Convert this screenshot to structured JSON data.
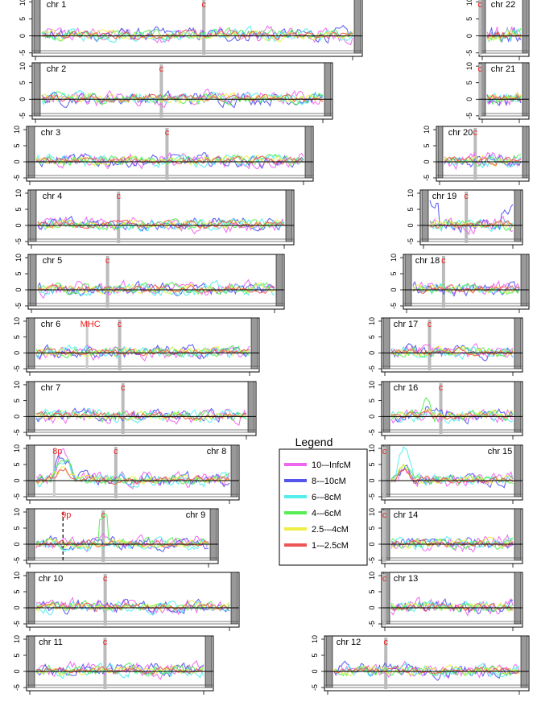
{
  "chart_data": {
    "type": "line",
    "ytick_labels": [
      "10",
      "5",
      "0",
      "-5"
    ],
    "y_ticks": [
      10,
      5,
      0,
      -5
    ],
    "ylim": [
      -6,
      11
    ],
    "centromere_label": "c",
    "grid": false,
    "chromosome_panels": [
      {
        "label": "chr 1",
        "label_side": "left",
        "centromere_frac": 0.52
      },
      {
        "label": "chr 2",
        "label_side": "left",
        "centromere_frac": 0.43
      },
      {
        "label": "chr 3",
        "label_side": "left",
        "centromere_frac": 0.49
      },
      {
        "label": "chr 4",
        "label_side": "left",
        "centromere_frac": 0.34
      },
      {
        "label": "chr 5",
        "label_side": "left",
        "centromere_frac": 0.31
      },
      {
        "label": "chr 6",
        "label_side": "left",
        "centromere_frac": 0.4,
        "extra_marker": {
          "label": "MHC",
          "frac": 0.26
        }
      },
      {
        "label": "chr 7",
        "label_side": "left",
        "centromere_frac": 0.42
      },
      {
        "label": "chr 8",
        "label_side": "right",
        "centromere_frac": 0.42,
        "extra_marker": {
          "label": "8p",
          "frac": 0.13
        }
      },
      {
        "label": "chr 9",
        "label_side": "right",
        "centromere_frac": 0.4,
        "extra_marker": {
          "label": "9p",
          "frac": 0.19
        }
      },
      {
        "label": "chr 10",
        "label_side": "left",
        "centromere_frac": 0.37
      },
      {
        "label": "chr 11",
        "label_side": "left",
        "centromere_frac": 0.42
      },
      {
        "label": "chr 12",
        "label_side": "left",
        "centromere_frac": 0.3
      },
      {
        "label": "chr 13",
        "label_side": "left",
        "centromere_frac": 0.02
      },
      {
        "label": "chr 14",
        "label_side": "left",
        "centromere_frac": 0.02
      },
      {
        "label": "chr 15",
        "label_side": "right",
        "centromere_frac": 0.02
      },
      {
        "label": "chr 16",
        "label_side": "left",
        "centromere_frac": 0.42
      },
      {
        "label": "chr 17",
        "label_side": "left",
        "centromere_frac": 0.34
      },
      {
        "label": "chr 18",
        "label_side": "left",
        "centromere_frac": 0.32
      },
      {
        "label": "chr 19",
        "label_side": "left",
        "centromere_frac": 0.45
      },
      {
        "label": "chr 20",
        "label_side": "left",
        "centromere_frac": 0.42
      },
      {
        "label": "chr 21",
        "label_side": "left",
        "centromere_frac": 0.02
      },
      {
        "label": "chr 22",
        "label_side": "left",
        "centromere_frac": 0.02
      }
    ],
    "legend": {
      "title": "Legend",
      "entries": [
        {
          "label": "10-–InfcM",
          "color": "#ee66ee"
        },
        {
          "label": "8-–10cM",
          "color": "#5555ee"
        },
        {
          "label": "6-–8cM",
          "color": "#55eeee"
        },
        {
          "label": "4-–6cM",
          "color": "#55ee55"
        },
        {
          "label": "2.5-–4cM",
          "color": "#eeee44"
        },
        {
          "label": "1-–2.5cM",
          "color": "#ee5555"
        }
      ]
    }
  }
}
